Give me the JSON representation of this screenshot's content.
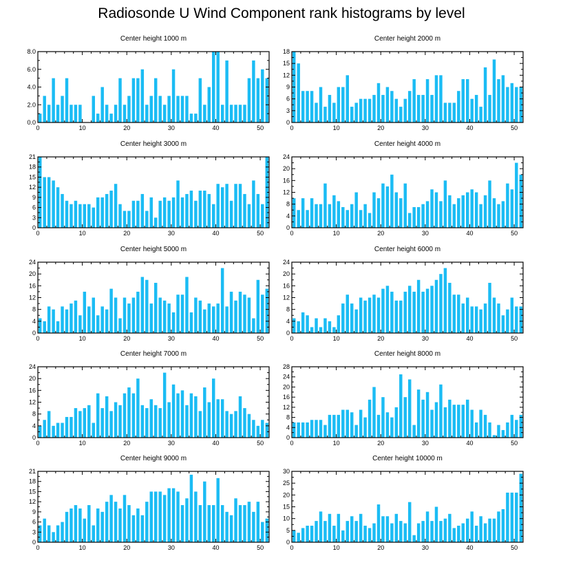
{
  "title": "Radiosonde U Wind Component rank histograms by level",
  "bar_color": "#1bbcf4",
  "chart_data": [
    {
      "type": "bar",
      "title": "Center height 1000 m",
      "xlim": [
        0,
        52
      ],
      "ylim": [
        0,
        8
      ],
      "yticks": [
        "0.0",
        "2.0",
        "4.0",
        "6.0",
        "8.0"
      ],
      "xticks": [
        0,
        10,
        20,
        30,
        40,
        50
      ],
      "values": [
        1,
        3,
        2,
        5,
        2,
        3,
        5,
        2,
        2,
        2,
        0,
        0,
        3,
        1,
        4,
        2,
        1,
        2,
        5,
        2,
        3,
        5,
        5,
        6,
        2,
        3,
        5,
        3,
        2,
        3,
        6,
        3,
        3,
        3,
        1,
        1,
        5,
        2,
        4,
        8,
        8,
        2,
        7,
        2,
        2,
        2,
        2,
        5,
        7,
        5,
        6,
        5
      ]
    },
    {
      "type": "bar",
      "title": "Center height 2000 m",
      "xlim": [
        0,
        52
      ],
      "ylim": [
        0,
        18
      ],
      "yticks": [
        "0",
        "3",
        "6",
        "9",
        "12",
        "15",
        "18"
      ],
      "xticks": [
        0,
        10,
        20,
        30,
        40,
        50
      ],
      "values": [
        18,
        15,
        8,
        8,
        8,
        5,
        9,
        4,
        7,
        5,
        9,
        9,
        12,
        4,
        5,
        6,
        6,
        6,
        7,
        10,
        7,
        9,
        8,
        6,
        4,
        6,
        8,
        11,
        7,
        7,
        11,
        7,
        12,
        12,
        5,
        5,
        5,
        8,
        11,
        11,
        6,
        7,
        4,
        14,
        7,
        16,
        11,
        12,
        9,
        10,
        9,
        9
      ]
    },
    {
      "type": "bar",
      "title": "Center height 3000 m",
      "xlim": [
        0,
        52
      ],
      "ylim": [
        0,
        21
      ],
      "yticks": [
        "0",
        "3",
        "6",
        "9",
        "12",
        "15",
        "18",
        "21"
      ],
      "xticks": [
        0,
        10,
        20,
        30,
        40,
        50
      ],
      "values": [
        21,
        15,
        15,
        14,
        12,
        10,
        8,
        7,
        8,
        7,
        7,
        7,
        6,
        9,
        9,
        10,
        11,
        13,
        7,
        5,
        5,
        8,
        8,
        10,
        5,
        9,
        3,
        8,
        9,
        8,
        9,
        14,
        9,
        10,
        11,
        8,
        11,
        11,
        10,
        7,
        13,
        12,
        13,
        8,
        13,
        13,
        10,
        7,
        14,
        10,
        7,
        21
      ]
    },
    {
      "type": "bar",
      "title": "Center height 4000 m",
      "xlim": [
        0,
        52
      ],
      "ylim": [
        0,
        24
      ],
      "yticks": [
        "0",
        "4",
        "8",
        "12",
        "16",
        "20",
        "24"
      ],
      "xticks": [
        0,
        10,
        20,
        30,
        40,
        50
      ],
      "values": [
        10,
        6,
        10,
        6,
        10,
        8,
        8,
        15,
        8,
        11,
        9,
        7,
        6,
        8,
        12,
        6,
        8,
        5,
        12,
        10,
        15,
        14,
        18,
        12,
        10,
        15,
        5,
        7,
        7,
        8,
        9,
        13,
        12,
        9,
        16,
        11,
        8,
        10,
        11,
        12,
        13,
        12,
        8,
        11,
        16,
        10,
        8,
        9,
        15,
        13,
        22,
        18
      ]
    },
    {
      "type": "bar",
      "title": "Center height 5000 m",
      "xlim": [
        0,
        52
      ],
      "ylim": [
        0,
        24
      ],
      "yticks": [
        "0",
        "4",
        "8",
        "12",
        "16",
        "20",
        "24"
      ],
      "xticks": [
        0,
        10,
        20,
        30,
        40,
        50
      ],
      "values": [
        5,
        4,
        9,
        8,
        4,
        9,
        8,
        10,
        11,
        6,
        14,
        9,
        12,
        6,
        9,
        8,
        15,
        12,
        5,
        12,
        10,
        12,
        14,
        19,
        18,
        10,
        17,
        12,
        11,
        10,
        7,
        13,
        13,
        19,
        7,
        12,
        11,
        8,
        10,
        9,
        10,
        22,
        9,
        14,
        11,
        14,
        13,
        12,
        5,
        18,
        13,
        15
      ]
    },
    {
      "type": "bar",
      "title": "Center height 6000 m",
      "xlim": [
        0,
        52
      ],
      "ylim": [
        0,
        24
      ],
      "yticks": [
        "0",
        "4",
        "8",
        "12",
        "16",
        "20",
        "24"
      ],
      "xticks": [
        0,
        10,
        20,
        30,
        40,
        50
      ],
      "values": [
        5,
        4,
        7,
        6,
        2,
        5,
        2,
        5,
        4,
        2,
        6,
        10,
        13,
        10,
        8,
        12,
        11,
        12,
        13,
        12,
        15,
        16,
        14,
        11,
        11,
        14,
        16,
        14,
        18,
        14,
        15,
        16,
        18,
        20,
        22,
        17,
        13,
        13,
        10,
        12,
        9,
        9,
        8,
        10,
        17,
        12,
        10,
        6,
        8,
        12,
        9,
        9
      ]
    },
    {
      "type": "bar",
      "title": "Center height 7000 m",
      "xlim": [
        0,
        52
      ],
      "ylim": [
        0,
        24
      ],
      "yticks": [
        "0",
        "4",
        "8",
        "12",
        "16",
        "20",
        "24"
      ],
      "xticks": [
        0,
        10,
        20,
        30,
        40,
        50
      ],
      "values": [
        4,
        6,
        9,
        4,
        5,
        5,
        7,
        7,
        10,
        9,
        10,
        11,
        5,
        15,
        10,
        14,
        9,
        12,
        11,
        15,
        17,
        15,
        20,
        11,
        10,
        13,
        11,
        10,
        22,
        12,
        18,
        15,
        16,
        11,
        15,
        14,
        9,
        17,
        12,
        20,
        13,
        13,
        9,
        8,
        9,
        14,
        10,
        8,
        6,
        4,
        6,
        5
      ]
    },
    {
      "type": "bar",
      "title": "Center height 8000 m",
      "xlim": [
        0,
        52
      ],
      "ylim": [
        0,
        28
      ],
      "yticks": [
        "0",
        "4",
        "8",
        "12",
        "16",
        "20",
        "24",
        "28"
      ],
      "xticks": [
        0,
        10,
        20,
        30,
        40,
        50
      ],
      "values": [
        6,
        6,
        6,
        6,
        7,
        7,
        7,
        5,
        9,
        9,
        9,
        11,
        11,
        10,
        5,
        11,
        8,
        15,
        20,
        9,
        16,
        10,
        8,
        12,
        25,
        16,
        23,
        5,
        19,
        15,
        18,
        11,
        14,
        21,
        12,
        15,
        13,
        13,
        13,
        15,
        11,
        6,
        11,
        9,
        6,
        1,
        5,
        3,
        6,
        9,
        7,
        9
      ]
    },
    {
      "type": "bar",
      "title": "Center height 9000 m",
      "xlim": [
        0,
        52
      ],
      "ylim": [
        0,
        21
      ],
      "yticks": [
        "0",
        "3",
        "6",
        "9",
        "12",
        "15",
        "18",
        "21"
      ],
      "xticks": [
        0,
        10,
        20,
        30,
        40,
        50
      ],
      "values": [
        5,
        7,
        5,
        3,
        5,
        6,
        9,
        10,
        11,
        10,
        7,
        11,
        5,
        10,
        9,
        12,
        14,
        12,
        10,
        14,
        11,
        8,
        10,
        8,
        12,
        15,
        15,
        15,
        14,
        16,
        16,
        15,
        11,
        13,
        20,
        15,
        11,
        18,
        11,
        11,
        19,
        11,
        9,
        8,
        13,
        11,
        11,
        12,
        9,
        12,
        6,
        7
      ]
    },
    {
      "type": "bar",
      "title": "Center height 10000 m",
      "xlim": [
        0,
        52
      ],
      "ylim": [
        0,
        30
      ],
      "yticks": [
        "0",
        "5",
        "10",
        "15",
        "20",
        "25",
        "30"
      ],
      "xticks": [
        0,
        10,
        20,
        30,
        40,
        50
      ],
      "values": [
        5,
        4,
        6,
        7,
        7,
        9,
        13,
        9,
        12,
        7,
        12,
        5,
        9,
        11,
        9,
        12,
        7,
        6,
        8,
        16,
        11,
        11,
        8,
        12,
        9,
        8,
        17,
        3,
        8,
        9,
        13,
        9,
        15,
        9,
        10,
        12,
        6,
        7,
        8,
        10,
        13,
        7,
        11,
        8,
        10,
        10,
        13,
        14,
        21,
        21,
        21,
        29
      ]
    }
  ]
}
